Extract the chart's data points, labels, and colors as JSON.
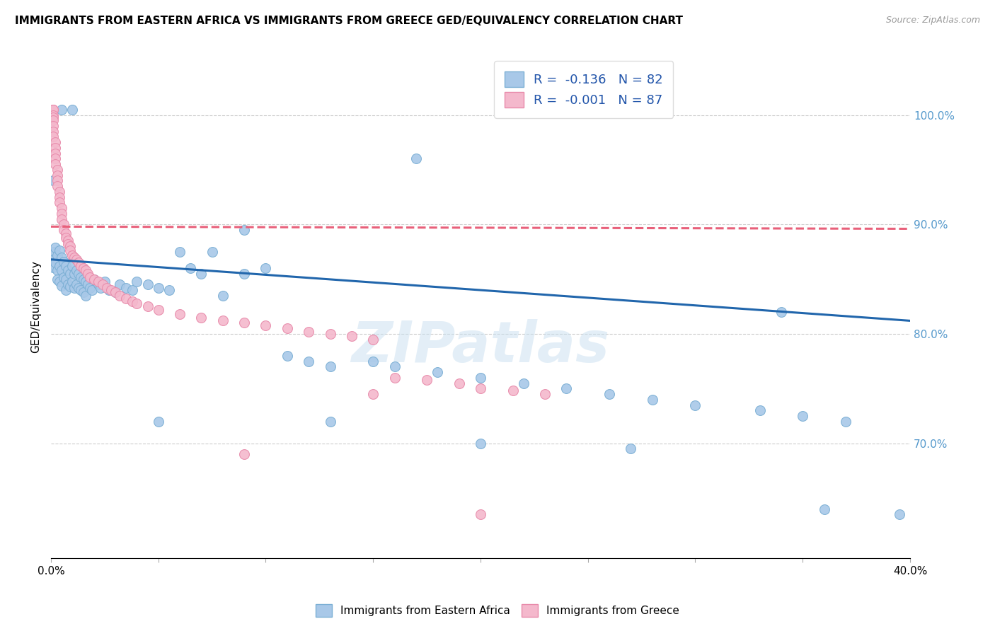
{
  "title": "IMMIGRANTS FROM EASTERN AFRICA VS IMMIGRANTS FROM GREECE GED/EQUIVALENCY CORRELATION CHART",
  "source": "Source: ZipAtlas.com",
  "ylabel": "GED/Equivalency",
  "watermark": "ZIPatlas",
  "blue_color": "#a8c8e8",
  "blue_edge_color": "#7bafd4",
  "pink_color": "#f4b8cc",
  "pink_edge_color": "#e88aaa",
  "blue_line_color": "#2166ac",
  "pink_line_color": "#e8607a",
  "legend_R_blue": "R =  -0.136",
  "legend_N_blue": "N = 82",
  "legend_R_pink": "R =  -0.001",
  "legend_N_pink": "N = 87",
  "xlim": [
    0.0,
    0.4
  ],
  "ylim": [
    0.595,
    1.055
  ],
  "right_yticks": [
    0.7,
    0.8,
    0.9,
    1.0
  ],
  "right_ytick_labels": [
    "70.0%",
    "80.0%",
    "90.0%",
    "100.0%"
  ],
  "grid_yticks": [
    0.7,
    0.8,
    0.9,
    1.0
  ],
  "blue_trend_x": [
    0.0,
    0.4
  ],
  "blue_trend_y": [
    0.868,
    0.812
  ],
  "pink_trend_x": [
    0.0,
    0.4
  ],
  "pink_trend_y": [
    0.898,
    0.896
  ],
  "blue_scatter_x": [
    0.001,
    0.001,
    0.001,
    0.002,
    0.002,
    0.003,
    0.003,
    0.003,
    0.004,
    0.004,
    0.004,
    0.005,
    0.005,
    0.005,
    0.006,
    0.006,
    0.007,
    0.007,
    0.007,
    0.008,
    0.008,
    0.009,
    0.009,
    0.01,
    0.01,
    0.011,
    0.011,
    0.012,
    0.012,
    0.013,
    0.013,
    0.014,
    0.014,
    0.015,
    0.015,
    0.016,
    0.016,
    0.017,
    0.018,
    0.019,
    0.02,
    0.021,
    0.022,
    0.023,
    0.025,
    0.027,
    0.03,
    0.032,
    0.035,
    0.038,
    0.04,
    0.045,
    0.05,
    0.055,
    0.06,
    0.065,
    0.07,
    0.075,
    0.08,
    0.09,
    0.1,
    0.11,
    0.12,
    0.13,
    0.15,
    0.16,
    0.18,
    0.2,
    0.22,
    0.24,
    0.26,
    0.28,
    0.3,
    0.33,
    0.35,
    0.37,
    0.395,
    0.05,
    0.13,
    0.2,
    0.27,
    0.36
  ],
  "blue_scatter_y": [
    0.875,
    0.868,
    0.861,
    0.879,
    0.865,
    0.872,
    0.858,
    0.85,
    0.876,
    0.862,
    0.848,
    0.87,
    0.858,
    0.844,
    0.866,
    0.852,
    0.862,
    0.85,
    0.84,
    0.858,
    0.845,
    0.855,
    0.843,
    0.862,
    0.848,
    0.855,
    0.842,
    0.858,
    0.845,
    0.855,
    0.842,
    0.852,
    0.84,
    0.85,
    0.838,
    0.848,
    0.835,
    0.845,
    0.842,
    0.84,
    0.85,
    0.848,
    0.845,
    0.842,
    0.848,
    0.84,
    0.838,
    0.845,
    0.842,
    0.84,
    0.848,
    0.845,
    0.842,
    0.84,
    0.875,
    0.86,
    0.855,
    0.875,
    0.835,
    0.855,
    0.86,
    0.78,
    0.775,
    0.77,
    0.775,
    0.77,
    0.765,
    0.76,
    0.755,
    0.75,
    0.745,
    0.74,
    0.735,
    0.73,
    0.725,
    0.72,
    0.635,
    0.72,
    0.72,
    0.7,
    0.695,
    0.64
  ],
  "blue_scatter_high_x": [
    0.005,
    0.01,
    0.17,
    0.34,
    0.001,
    0.09
  ],
  "blue_scatter_high_y": [
    1.005,
    1.005,
    0.96,
    0.82,
    0.94,
    0.895
  ],
  "pink_scatter_x": [
    0.001,
    0.001,
    0.001,
    0.001,
    0.001,
    0.001,
    0.001,
    0.001,
    0.002,
    0.002,
    0.002,
    0.002,
    0.002,
    0.003,
    0.003,
    0.003,
    0.003,
    0.004,
    0.004,
    0.004,
    0.005,
    0.005,
    0.005,
    0.006,
    0.006,
    0.007,
    0.007,
    0.008,
    0.008,
    0.009,
    0.009,
    0.01,
    0.011,
    0.012,
    0.013,
    0.014,
    0.015,
    0.016,
    0.017,
    0.018,
    0.02,
    0.022,
    0.024,
    0.026,
    0.028,
    0.03,
    0.032,
    0.035,
    0.038,
    0.04,
    0.045,
    0.05,
    0.06,
    0.07,
    0.08,
    0.09,
    0.1,
    0.11,
    0.12,
    0.13,
    0.14,
    0.15,
    0.16,
    0.175,
    0.19,
    0.2,
    0.215,
    0.23,
    0.09,
    0.15,
    0.2
  ],
  "pink_scatter_y": [
    1.005,
    1.005,
    1.0,
    0.998,
    0.995,
    0.99,
    0.985,
    0.98,
    0.975,
    0.97,
    0.965,
    0.96,
    0.955,
    0.95,
    0.945,
    0.94,
    0.935,
    0.93,
    0.925,
    0.92,
    0.915,
    0.91,
    0.905,
    0.9,
    0.895,
    0.892,
    0.888,
    0.885,
    0.882,
    0.88,
    0.876,
    0.872,
    0.87,
    0.868,
    0.865,
    0.862,
    0.86,
    0.858,
    0.855,
    0.852,
    0.85,
    0.848,
    0.845,
    0.842,
    0.84,
    0.838,
    0.835,
    0.832,
    0.83,
    0.828,
    0.825,
    0.822,
    0.818,
    0.815,
    0.812,
    0.81,
    0.808,
    0.805,
    0.802,
    0.8,
    0.798,
    0.795,
    0.76,
    0.758,
    0.755,
    0.75,
    0.748,
    0.745,
    0.69,
    0.745,
    0.635
  ]
}
